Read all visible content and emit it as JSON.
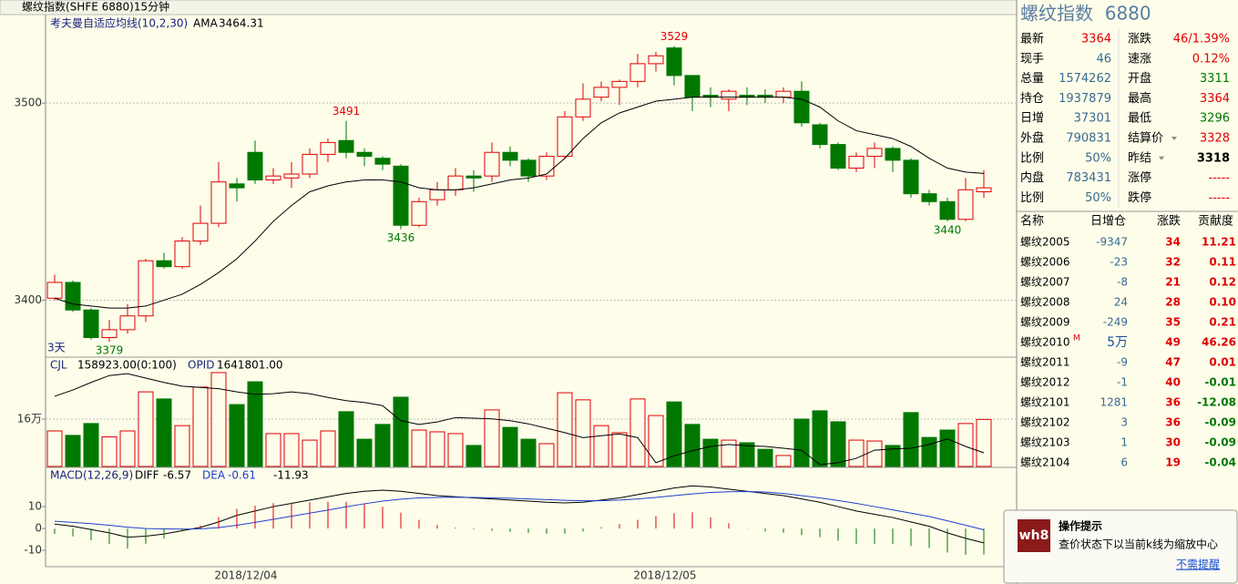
{
  "window_title": "螺纹指数(SHFE 6880)15分钟",
  "chart_data": [
    {
      "type": "candlestick",
      "title": "考夫曼自适应均线(10,2,30)",
      "period_label": "3天",
      "open": [
        3401,
        3409,
        3395,
        3381,
        3385,
        3392,
        3420,
        3417,
        3430,
        3439,
        3459,
        3475,
        3461,
        3462,
        3464,
        3474,
        3481,
        3475,
        3472,
        3468,
        3438,
        3451,
        3456,
        3463,
        3463,
        3475,
        3471,
        3463,
        3473,
        3493,
        3503,
        3508,
        3511,
        3520,
        3528,
        3514,
        3504,
        3502,
        3504,
        3504,
        3503,
        3506,
        3489,
        3479,
        3467,
        3473,
        3477,
        3471,
        3454,
        3450,
        3441,
        3455
      ],
      "close": [
        3409,
        3395,
        3381,
        3385,
        3392,
        3420,
        3417,
        3430,
        3439,
        3460,
        3457,
        3461,
        3463,
        3464,
        3474,
        3480,
        3475,
        3473,
        3469,
        3438,
        3450,
        3456,
        3463,
        3462,
        3475,
        3471,
        3463,
        3473,
        3493,
        3502,
        3508,
        3511,
        3520,
        3524,
        3514,
        3503,
        3503,
        3506,
        3503,
        3503,
        3506,
        3490,
        3479,
        3467,
        3473,
        3477,
        3471,
        3454,
        3450,
        3441,
        3456,
        3457
      ],
      "high": [
        3413,
        3410,
        3396,
        3390,
        3398,
        3421,
        3424,
        3432,
        3448,
        3470,
        3462,
        3481,
        3467,
        3470,
        3477,
        3482,
        3491,
        3477,
        3473,
        3469,
        3452,
        3460,
        3467,
        3466,
        3480,
        3478,
        3472,
        3475,
        3496,
        3510,
        3511,
        3512,
        3525,
        3526,
        3529,
        3514,
        3508,
        3507,
        3508,
        3507,
        3508,
        3511,
        3490,
        3480,
        3475,
        3480,
        3478,
        3472,
        3456,
        3452,
        3462,
        3466
      ],
      "low": [
        3400,
        3394,
        3380,
        3379,
        3383,
        3389,
        3416,
        3416,
        3428,
        3437,
        3450,
        3459,
        3459,
        3457,
        3462,
        3470,
        3472,
        3468,
        3466,
        3436,
        3437,
        3448,
        3453,
        3455,
        3460,
        3468,
        3460,
        3461,
        3472,
        3491,
        3501,
        3499,
        3508,
        3516,
        3509,
        3496,
        3498,
        3496,
        3499,
        3500,
        3500,
        3488,
        3477,
        3466,
        3465,
        3467,
        3465,
        3452,
        3448,
        3440,
        3440,
        3452
      ],
      "up_color": "#e00000",
      "down_color": "#007800",
      "series": [
        {
          "name": "AMA",
          "legend_value": "3464.31",
          "color": "#000000",
          "values": [
            3401,
            3398,
            3397,
            3396,
            3396,
            3397,
            3400,
            3403,
            3408,
            3414,
            3421,
            3430,
            3440,
            3448,
            3455,
            3458,
            3460,
            3461,
            3461,
            3460,
            3457,
            3456,
            3456,
            3457,
            3459,
            3461,
            3462,
            3464,
            3472,
            3482,
            3490,
            3495,
            3498,
            3501,
            3502,
            3503,
            3503,
            3503,
            3503,
            3503,
            3503,
            3502,
            3498,
            3491,
            3486,
            3484,
            3482,
            3478,
            3472,
            3467,
            3465,
            3464.31
          ]
        }
      ],
      "annotations": [
        {
          "index": 16,
          "value": 3491,
          "side": "high"
        },
        {
          "index": 19,
          "value": 3436,
          "side": "low"
        },
        {
          "index": 34,
          "value": 3529,
          "side": "high"
        },
        {
          "index": 3,
          "value": 3379,
          "side": "low"
        },
        {
          "index": 49,
          "value": 3440,
          "side": "low"
        }
      ],
      "ylim": [
        3372,
        3544
      ],
      "yticks": [
        3400,
        3500
      ],
      "grid": true
    },
    {
      "type": "volume",
      "series": [
        {
          "name": "CJL",
          "legend_value": "158923.00(0:100)",
          "values": [
            120000,
            105000,
            145000,
            100000,
            120000,
            252000,
            228000,
            138000,
            268000,
            317000,
            209000,
            286000,
            111000,
            111000,
            89000,
            120000,
            185000,
            92000,
            142000,
            234000,
            123000,
            117000,
            111000,
            71000,
            191000,
            132000,
            92000,
            77000,
            249000,
            225000,
            138000,
            114000,
            228000,
            172000,
            218000,
            142000,
            92000,
            89000,
            80000,
            58000,
            37000,
            160000,
            188000,
            151000,
            89000,
            86000,
            71000,
            182000,
            98000,
            123000,
            145000,
            158923
          ]
        },
        {
          "name": "OPID",
          "legend_value": "1641801.00",
          "axis": "y2",
          "color": "#000000",
          "values": [
            1732000,
            1742000,
            1754000,
            1765000,
            1768000,
            1761000,
            1754000,
            1748000,
            1746000,
            1744000,
            1739000,
            1735000,
            1736000,
            1739000,
            1736000,
            1730000,
            1725000,
            1722000,
            1717000,
            1693000,
            1687000,
            1691000,
            1698000,
            1697000,
            1696000,
            1693000,
            1688000,
            1681000,
            1674000,
            1666000,
            1669000,
            1672000,
            1666000,
            1626000,
            1637000,
            1645000,
            1652000,
            1655000,
            1653000,
            1652000,
            1649000,
            1646000,
            1623000,
            1626000,
            1633000,
            1646000,
            1648000,
            1649000,
            1655000,
            1664000,
            1652000,
            1641801
          ]
        }
      ],
      "ylim": [
        0,
        360000
      ],
      "yticks": [
        {
          "value": 160000,
          "label": "16万"
        }
      ],
      "y2lim": [
        1620000,
        1790000
      ],
      "grid": true
    },
    {
      "type": "macd",
      "title": "MACD(12,26,9)",
      "categories": [
        null,
        null,
        null,
        null,
        null,
        null,
        null,
        null,
        null,
        null,
        "2018/12/04",
        null,
        null,
        null,
        null,
        null,
        null,
        null,
        null,
        null,
        null,
        null,
        null,
        null,
        null,
        null,
        null,
        null,
        null,
        null,
        null,
        null,
        null,
        "2018/12/05",
        null,
        null,
        null,
        null,
        null,
        null,
        null,
        null,
        null,
        null,
        null,
        null,
        null,
        null,
        null,
        null,
        null,
        null
      ],
      "series": [
        {
          "name": "DIFF",
          "legend_value": "-6.57",
          "color": "#000000",
          "values": [
            2,
            1,
            -0.5,
            -2,
            -4,
            -3.5,
            -2.5,
            -1,
            0.5,
            3,
            6,
            8,
            10,
            11.5,
            13,
            14.5,
            16,
            17,
            17.5,
            17,
            16,
            15,
            14.5,
            14,
            13.5,
            13,
            12.5,
            12,
            11.7,
            12,
            13,
            14,
            15.5,
            17,
            18.5,
            19.5,
            19,
            18,
            17,
            16,
            15,
            13.5,
            12,
            10,
            8,
            6.5,
            5,
            3,
            1,
            -2,
            -4.5,
            -6.57
          ]
        },
        {
          "name": "DEA",
          "legend_value": "-0.61",
          "color": "#2040d0",
          "values": [
            3.3,
            2.8,
            2.2,
            1.5,
            0.6,
            0,
            -0.2,
            -0.3,
            -0.2,
            0.4,
            1.5,
            2.8,
            4.2,
            5.6,
            7,
            8.4,
            9.9,
            11.3,
            12.5,
            13.4,
            14,
            14.2,
            14.3,
            14.2,
            14,
            13.8,
            13.5,
            13.2,
            12.9,
            12.7,
            12.7,
            13,
            13.5,
            14.2,
            15,
            15.8,
            16.5,
            16.8,
            16.9,
            16.7,
            16,
            15,
            14,
            12.8,
            11.5,
            10,
            8.5,
            7,
            5.5,
            3.5,
            1.5,
            -0.61
          ]
        },
        {
          "legend_value": "-11.93",
          "up_color": "#e00000",
          "down_color": "#007800",
          "values": [
            -2.6,
            -3.6,
            -5.4,
            -7,
            -9.2,
            -7,
            -4.6,
            -1.4,
            1.4,
            5.2,
            9,
            10.4,
            11.6,
            11.8,
            12,
            12.2,
            12.2,
            11.4,
            10,
            7.2,
            4,
            1.6,
            0.4,
            -0.4,
            -1,
            -1.6,
            -2,
            -2.4,
            -2.4,
            -1.4,
            0.6,
            2,
            4,
            5.6,
            7,
            7.4,
            5,
            2.4,
            0.2,
            -1.4,
            -2,
            -3,
            -4,
            -5.6,
            -7,
            -7,
            -7,
            -8,
            -9,
            -11,
            -12,
            -11.93
          ]
        }
      ],
      "ylim": [
        -13.3,
        27.1
      ],
      "yticks": [
        10,
        0,
        -10
      ],
      "grid": false
    }
  ],
  "quote": {
    "title": "螺纹指数  6880",
    "rows": [
      [
        "最新",
        "3364",
        "涨跌",
        "46/1.39%"
      ],
      [
        "现手",
        "46",
        "速涨",
        "0.12%"
      ],
      [
        "总量",
        "1574262",
        "开盘",
        "3311"
      ],
      [
        "持仓",
        "1937879",
        "最高",
        "3364"
      ],
      [
        "日增",
        "37301",
        "最低",
        "3296"
      ],
      [
        "外盘",
        "790831",
        "结算价",
        "3328"
      ],
      [
        "比例",
        "50%",
        "昨结",
        "3318"
      ],
      [
        "内盘",
        "783431",
        "涨停",
        "-----"
      ],
      [
        "比例",
        "50%",
        "跌停",
        "-----"
      ]
    ],
    "value_colors": [
      [
        "#e00000",
        "#e00000"
      ],
      [
        "#3a6a90",
        "#e00000"
      ],
      [
        "#3a6a90",
        "#007800"
      ],
      [
        "#3a6a90",
        "#e00000"
      ],
      [
        "#3a6a90",
        "#007800"
      ],
      [
        "#3a6a90",
        "#e00000"
      ],
      [
        "#3a6a90",
        "#000000"
      ],
      [
        "#3a6a90",
        "#e00000"
      ],
      [
        "#3a6a90",
        "#e00000"
      ]
    ],
    "dropdown_rows": [
      5,
      6
    ]
  },
  "contracts": {
    "header": [
      "名称",
      "日增仓",
      "涨跌",
      "贡献度"
    ],
    "rows": [
      [
        "螺纹2005",
        "-9347",
        "34",
        "11.21"
      ],
      [
        "螺纹2006",
        "-23",
        "32",
        "0.11"
      ],
      [
        "螺纹2007",
        "-8",
        "21",
        "0.12"
      ],
      [
        "螺纹2008",
        "24",
        "28",
        "0.10"
      ],
      [
        "螺纹2009",
        "-249",
        "35",
        "0.21"
      ],
      [
        "螺纹2010",
        "5万",
        "49",
        "46.26"
      ],
      [
        "螺纹2011",
        "-9",
        "47",
        "0.01"
      ],
      [
        "螺纹2012",
        "-1",
        "40",
        "-0.01"
      ],
      [
        "螺纹2101",
        "1281",
        "36",
        "-12.08"
      ],
      [
        "螺纹2102",
        "3",
        "36",
        "-0.09"
      ],
      [
        "螺纹2103",
        "1",
        "30",
        "-0.09"
      ],
      [
        "螺纹2104",
        "6",
        "19",
        "-0.04"
      ]
    ],
    "marked_row": {
      "index": 5,
      "text": "M"
    }
  },
  "tip": {
    "logo": "wh8",
    "title": "操作提示",
    "message": "查价状态下以当前k线为缩放中心",
    "dismiss": "不需提醒"
  }
}
